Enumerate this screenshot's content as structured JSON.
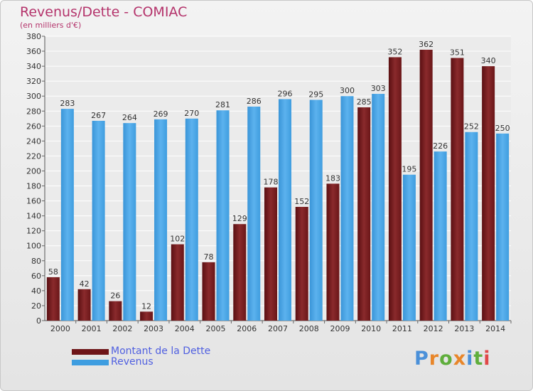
{
  "header": {
    "title": "Revenus/Dette - COMIAC",
    "subtitle": "(en milliers d'€)"
  },
  "legend": {
    "items": [
      {
        "label": "Montant de la Dette",
        "color": "#6e1518"
      },
      {
        "label": "Revenus",
        "color": "#3e9de0"
      }
    ]
  },
  "logo": {
    "text": "Proxiti"
  },
  "colors": {
    "dette": "#7a1e22",
    "revenus": "#4aa6e6",
    "title": "#b4336b",
    "legend_text": "#4f5fe0"
  },
  "chart_data": {
    "type": "bar",
    "title": "Revenus/Dette - COMIAC",
    "subtitle": "(en milliers d'€)",
    "categories": [
      "2000",
      "2001",
      "2002",
      "2003",
      "2004",
      "2005",
      "2006",
      "2007",
      "2008",
      "2009",
      "2010",
      "2011",
      "2012",
      "2013",
      "2014"
    ],
    "series": [
      {
        "name": "Montant de la Dette",
        "values": [
          58,
          42,
          26,
          12,
          102,
          78,
          129,
          178,
          152,
          183,
          285,
          352,
          362,
          351,
          340
        ]
      },
      {
        "name": "Revenus",
        "values": [
          283,
          267,
          264,
          269,
          270,
          281,
          286,
          296,
          295,
          300,
          303,
          195,
          226,
          252,
          250
        ]
      }
    ],
    "ylim": [
      0,
      380
    ],
    "ytick_step": 20,
    "grid": true,
    "legend_position": "bottom-left"
  }
}
